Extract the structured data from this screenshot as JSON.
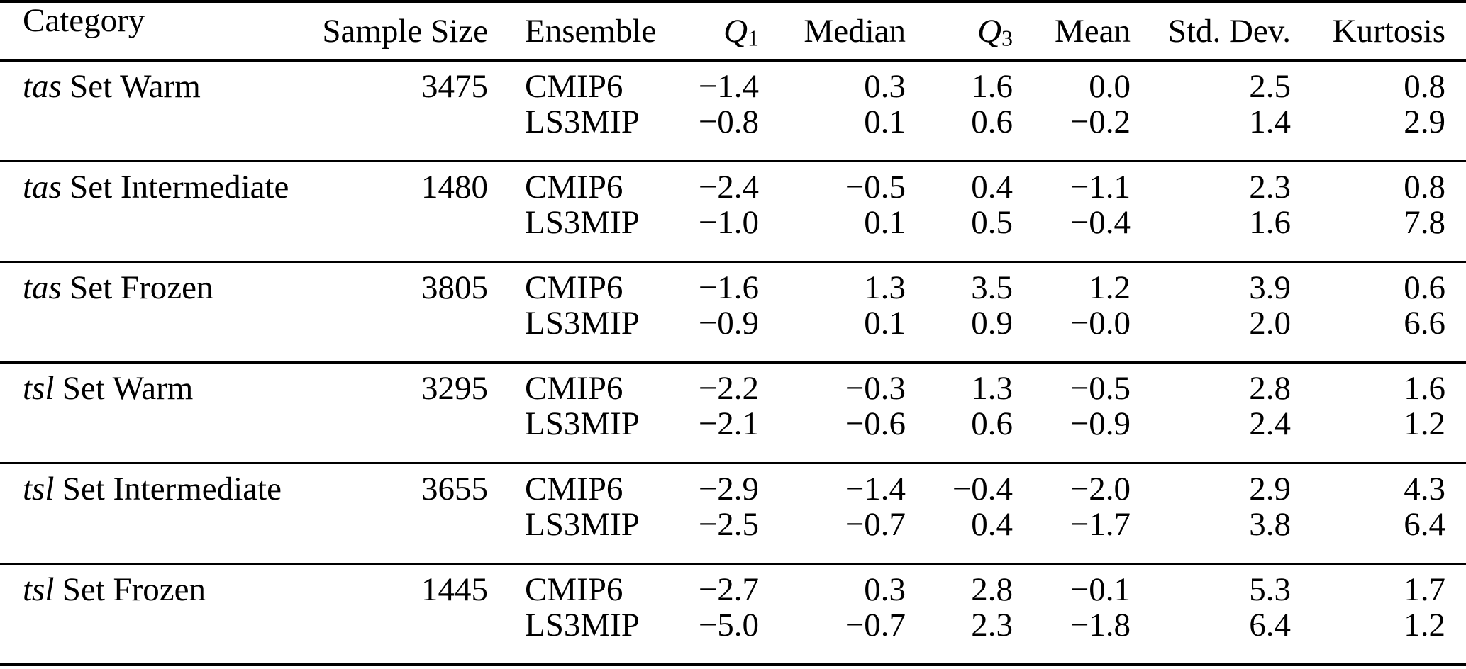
{
  "colors": {
    "text": "#000000",
    "background": "#ffffff",
    "rule": "#000000"
  },
  "table": {
    "columns": [
      {
        "label": "Category"
      },
      {
        "label": "Sample Size"
      },
      {
        "label": "Ensemble"
      },
      {
        "label": "Q",
        "sub": "1"
      },
      {
        "label": "Median"
      },
      {
        "label": "Q",
        "sub": "3"
      },
      {
        "label": "Mean"
      },
      {
        "label": "Std. Dev."
      },
      {
        "label": "Kurtosis"
      }
    ],
    "groups": [
      {
        "category_variable": "tas",
        "category_label": "Set Warm",
        "sample_size": "3475",
        "rows": [
          {
            "ensemble": "CMIP6",
            "q1": "−1.4",
            "median": "0.3",
            "q3": "1.6",
            "mean": "0.0",
            "std_dev": "2.5",
            "kurtosis": "0.8"
          },
          {
            "ensemble": "LS3MIP",
            "q1": "−0.8",
            "median": "0.1",
            "q3": "0.6",
            "mean": "−0.2",
            "std_dev": "1.4",
            "kurtosis": "2.9"
          }
        ]
      },
      {
        "category_variable": "tas",
        "category_label": "Set Intermediate",
        "sample_size": "1480",
        "rows": [
          {
            "ensemble": "CMIP6",
            "q1": "−2.4",
            "median": "−0.5",
            "q3": "0.4",
            "mean": "−1.1",
            "std_dev": "2.3",
            "kurtosis": "0.8"
          },
          {
            "ensemble": "LS3MIP",
            "q1": "−1.0",
            "median": "0.1",
            "q3": "0.5",
            "mean": "−0.4",
            "std_dev": "1.6",
            "kurtosis": "7.8"
          }
        ]
      },
      {
        "category_variable": "tas",
        "category_label": "Set Frozen",
        "sample_size": "3805",
        "rows": [
          {
            "ensemble": "CMIP6",
            "q1": "−1.6",
            "median": "1.3",
            "q3": "3.5",
            "mean": "1.2",
            "std_dev": "3.9",
            "kurtosis": "0.6"
          },
          {
            "ensemble": "LS3MIP",
            "q1": "−0.9",
            "median": "0.1",
            "q3": "0.9",
            "mean": "−0.0",
            "std_dev": "2.0",
            "kurtosis": "6.6"
          }
        ]
      },
      {
        "category_variable": "tsl",
        "category_label": "Set Warm",
        "sample_size": "3295",
        "rows": [
          {
            "ensemble": "CMIP6",
            "q1": "−2.2",
            "median": "−0.3",
            "q3": "1.3",
            "mean": "−0.5",
            "std_dev": "2.8",
            "kurtosis": "1.6"
          },
          {
            "ensemble": "LS3MIP",
            "q1": "−2.1",
            "median": "−0.6",
            "q3": "0.6",
            "mean": "−0.9",
            "std_dev": "2.4",
            "kurtosis": "1.2"
          }
        ]
      },
      {
        "category_variable": "tsl",
        "category_label": "Set Intermediate",
        "sample_size": "3655",
        "rows": [
          {
            "ensemble": "CMIP6",
            "q1": "−2.9",
            "median": "−1.4",
            "q3": "−0.4",
            "mean": "−2.0",
            "std_dev": "2.9",
            "kurtosis": "4.3"
          },
          {
            "ensemble": "LS3MIP",
            "q1": "−2.5",
            "median": "−0.7",
            "q3": "0.4",
            "mean": "−1.7",
            "std_dev": "3.8",
            "kurtosis": "6.4"
          }
        ]
      },
      {
        "category_variable": "tsl",
        "category_label": "Set Frozen",
        "sample_size": "1445",
        "rows": [
          {
            "ensemble": "CMIP6",
            "q1": "−2.7",
            "median": "0.3",
            "q3": "2.8",
            "mean": "−0.1",
            "std_dev": "5.3",
            "kurtosis": "1.7"
          },
          {
            "ensemble": "LS3MIP",
            "q1": "−5.0",
            "median": "−0.7",
            "q3": "2.3",
            "mean": "−1.8",
            "std_dev": "6.4",
            "kurtosis": "1.2"
          }
        ]
      }
    ]
  }
}
